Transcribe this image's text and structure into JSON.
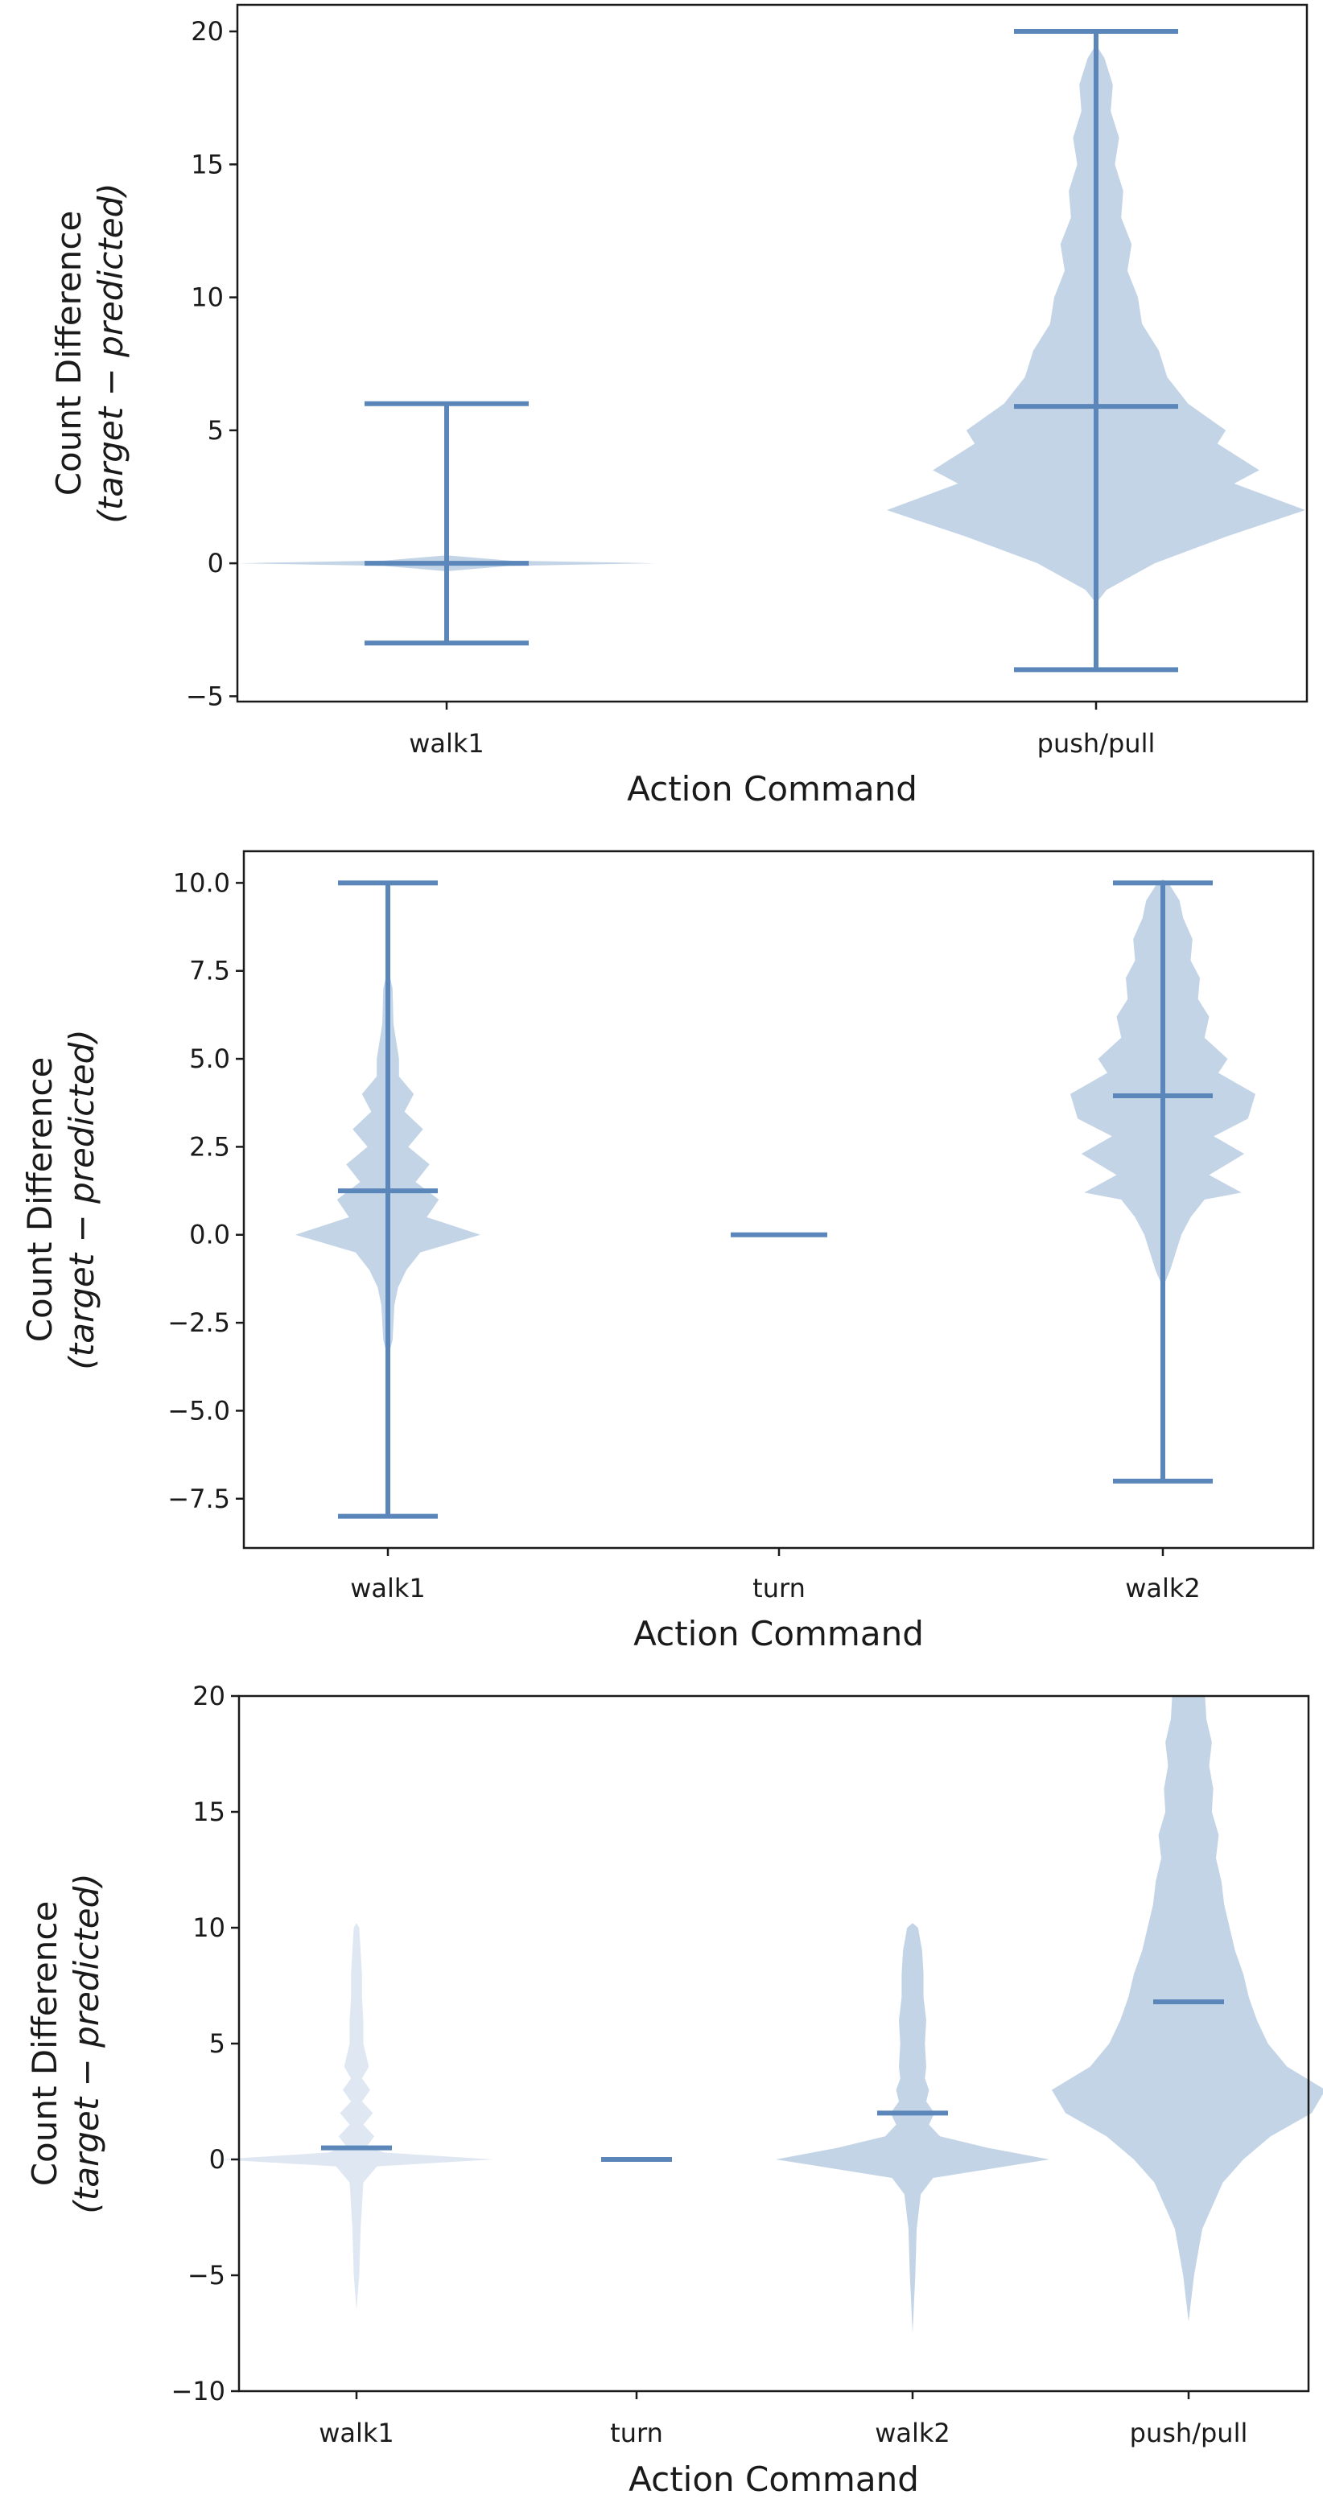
{
  "colors": {
    "violin": "#c3d4e7",
    "stats": "#5b86ba",
    "axis": "#1a1a1a"
  },
  "chart_data": [
    {
      "type": "violin",
      "xlabel": "Action Command",
      "ylabel_line1": "Count Difference",
      "ylabel_line2": "(target − predicted)",
      "ylim": [
        -5.2,
        21
      ],
      "yticks": [
        -5,
        0,
        5,
        10,
        15,
        20
      ],
      "ytick_labels": [
        "−5",
        "0",
        "5",
        "10",
        "15",
        "20"
      ],
      "categories": [
        "walk1",
        "push/pull"
      ],
      "series": [
        {
          "name": "walk1",
          "min": -3,
          "max": 6,
          "mean": 0,
          "show_extrema": true,
          "alpha": 1,
          "profile": [
            [
              -0.3,
              0
            ],
            [
              -0.1,
              0.3
            ],
            [
              0,
              1.0
            ],
            [
              0.1,
              0.3
            ],
            [
              0.3,
              0
            ]
          ]
        },
        {
          "name": "push/pull",
          "min": -4,
          "max": 20,
          "mean": 5.9,
          "show_extrema": true,
          "alpha": 1,
          "profile": [
            [
              -1.5,
              0
            ],
            [
              -1,
              0.05
            ],
            [
              0,
              0.28
            ],
            [
              1,
              0.62
            ],
            [
              2,
              1.0
            ],
            [
              3,
              0.66
            ],
            [
              3.5,
              0.78
            ],
            [
              4.5,
              0.58
            ],
            [
              5,
              0.62
            ],
            [
              6,
              0.44
            ],
            [
              7,
              0.34
            ],
            [
              8,
              0.3
            ],
            [
              9,
              0.22
            ],
            [
              10,
              0.2
            ],
            [
              11,
              0.15
            ],
            [
              12,
              0.17
            ],
            [
              13,
              0.12
            ],
            [
              14,
              0.13
            ],
            [
              15,
              0.09
            ],
            [
              16,
              0.11
            ],
            [
              17,
              0.07
            ],
            [
              18,
              0.08
            ],
            [
              19,
              0.04
            ],
            [
              19.5,
              0
            ]
          ]
        }
      ]
    },
    {
      "type": "violin",
      "xlabel": "Action Command",
      "ylabel_line1": "Count Difference",
      "ylabel_line2": "(target − predicted)",
      "ylim": [
        -8.9,
        10.9
      ],
      "yticks": [
        -7.5,
        -5.0,
        -2.5,
        0.0,
        2.5,
        5.0,
        7.5,
        10.0
      ],
      "ytick_labels": [
        "−7.5",
        "−5.0",
        "−2.5",
        "0.0",
        "2.5",
        "5.0",
        "7.5",
        "10.0"
      ],
      "categories": [
        "walk1",
        "turn",
        "walk2"
      ],
      "series": [
        {
          "name": "walk1",
          "min": -8,
          "max": 10,
          "mean": 1.25,
          "show_extrema": true,
          "alpha": 1,
          "profile": [
            [
              -3.5,
              0
            ],
            [
              -3,
              0.05
            ],
            [
              -2,
              0.07
            ],
            [
              -1.5,
              0.11
            ],
            [
              -1,
              0.2
            ],
            [
              -0.5,
              0.35
            ],
            [
              0,
              1.0
            ],
            [
              0.5,
              0.42
            ],
            [
              1,
              0.55
            ],
            [
              1.5,
              0.3
            ],
            [
              2,
              0.45
            ],
            [
              2.5,
              0.22
            ],
            [
              3,
              0.38
            ],
            [
              3.5,
              0.18
            ],
            [
              4,
              0.28
            ],
            [
              4.5,
              0.12
            ],
            [
              5,
              0.12
            ],
            [
              6,
              0.06
            ],
            [
              7,
              0.05
            ],
            [
              7.6,
              0
            ]
          ]
        },
        {
          "name": "turn",
          "min": 0,
          "max": 0,
          "mean": 0,
          "show_extrema": false,
          "alpha": 1,
          "profile": [
            [
              0,
              0.6
            ]
          ]
        },
        {
          "name": "walk2",
          "min": -7,
          "max": 10,
          "mean": 3.95,
          "show_extrema": true,
          "alpha": 1,
          "profile": [
            [
              -1.5,
              0
            ],
            [
              -1,
              0.08
            ],
            [
              0,
              0.2
            ],
            [
              0.5,
              0.3
            ],
            [
              1,
              0.45
            ],
            [
              1.2,
              0.85
            ],
            [
              1.7,
              0.5
            ],
            [
              2.3,
              0.88
            ],
            [
              2.8,
              0.55
            ],
            [
              3.3,
              0.92
            ],
            [
              4,
              1.0
            ],
            [
              4.6,
              0.6
            ],
            [
              5,
              0.7
            ],
            [
              5.6,
              0.45
            ],
            [
              6.2,
              0.5
            ],
            [
              6.7,
              0.38
            ],
            [
              7.3,
              0.4
            ],
            [
              7.8,
              0.3
            ],
            [
              8.4,
              0.32
            ],
            [
              9,
              0.22
            ],
            [
              9.5,
              0.18
            ],
            [
              10,
              0.06
            ],
            [
              10.1,
              0
            ]
          ]
        }
      ]
    },
    {
      "type": "violin",
      "xlabel": "Action Command",
      "ylabel_line1": "Count Difference",
      "ylabel_line2": "(target − predicted)",
      "ylim": [
        -10,
        20
      ],
      "yticks": [
        -10,
        -5,
        0,
        5,
        10,
        15,
        20
      ],
      "ytick_labels": [
        "−10",
        "−5",
        "0",
        "5",
        "10",
        "15",
        "20"
      ],
      "categories": [
        "walk1",
        "turn",
        "walk2",
        "push/pull"
      ],
      "series": [
        {
          "name": "walk1",
          "min": -6,
          "max": 10,
          "mean": 0.5,
          "show_extrema": false,
          "alpha": 0.55,
          "profile": [
            [
              -6.5,
              0
            ],
            [
              -5,
              0.02
            ],
            [
              -3,
              0.03
            ],
            [
              -1,
              0.05
            ],
            [
              -0.3,
              0.15
            ],
            [
              0,
              1.0
            ],
            [
              0.3,
              0.2
            ],
            [
              0.6,
              0.08
            ],
            [
              1,
              0.13
            ],
            [
              1.5,
              0.05
            ],
            [
              2,
              0.12
            ],
            [
              2.5,
              0.04
            ],
            [
              3,
              0.1
            ],
            [
              3.5,
              0.04
            ],
            [
              4,
              0.09
            ],
            [
              5,
              0.05
            ],
            [
              6,
              0.05
            ],
            [
              7,
              0.04
            ],
            [
              8,
              0.04
            ],
            [
              9,
              0.03
            ],
            [
              10,
              0.02
            ],
            [
              10.2,
              0
            ]
          ]
        },
        {
          "name": "turn",
          "min": 0,
          "max": 0,
          "mean": 0,
          "show_extrema": false,
          "alpha": 1,
          "profile": [
            [
              0,
              0.5
            ]
          ]
        },
        {
          "name": "walk2",
          "min": -8,
          "max": 10,
          "mean": 2.0,
          "show_extrema": false,
          "alpha": 1,
          "profile": [
            [
              -7.5,
              0
            ],
            [
              -5,
              0.02
            ],
            [
              -3,
              0.03
            ],
            [
              -1.5,
              0.06
            ],
            [
              -0.8,
              0.15
            ],
            [
              0,
              1.0
            ],
            [
              0.5,
              0.55
            ],
            [
              1,
              0.2
            ],
            [
              1.5,
              0.12
            ],
            [
              2,
              0.16
            ],
            [
              2.5,
              0.1
            ],
            [
              3,
              0.12
            ],
            [
              3.5,
              0.09
            ],
            [
              4,
              0.1
            ],
            [
              5,
              0.09
            ],
            [
              6,
              0.1
            ],
            [
              7,
              0.08
            ],
            [
              8,
              0.08
            ],
            [
              9,
              0.07
            ],
            [
              10,
              0.04
            ],
            [
              10.2,
              0
            ]
          ]
        },
        {
          "name": "push/pull",
          "min": -7,
          "max": 20,
          "mean": 6.8,
          "show_extrema": false,
          "alpha": 1,
          "profile": [
            [
              -7,
              0
            ],
            [
              -5,
              0.04
            ],
            [
              -3,
              0.1
            ],
            [
              -1,
              0.25
            ],
            [
              0,
              0.4
            ],
            [
              1,
              0.6
            ],
            [
              2,
              0.9
            ],
            [
              3,
              1.0
            ],
            [
              4,
              0.72
            ],
            [
              5,
              0.58
            ],
            [
              6,
              0.5
            ],
            [
              7,
              0.44
            ],
            [
              8,
              0.4
            ],
            [
              9,
              0.34
            ],
            [
              10,
              0.3
            ],
            [
              11,
              0.26
            ],
            [
              12,
              0.24
            ],
            [
              13,
              0.2
            ],
            [
              14,
              0.22
            ],
            [
              15,
              0.17
            ],
            [
              16,
              0.18
            ],
            [
              17,
              0.15
            ],
            [
              18,
              0.17
            ],
            [
              19,
              0.13
            ],
            [
              20,
              0.12
            ]
          ]
        }
      ]
    }
  ]
}
